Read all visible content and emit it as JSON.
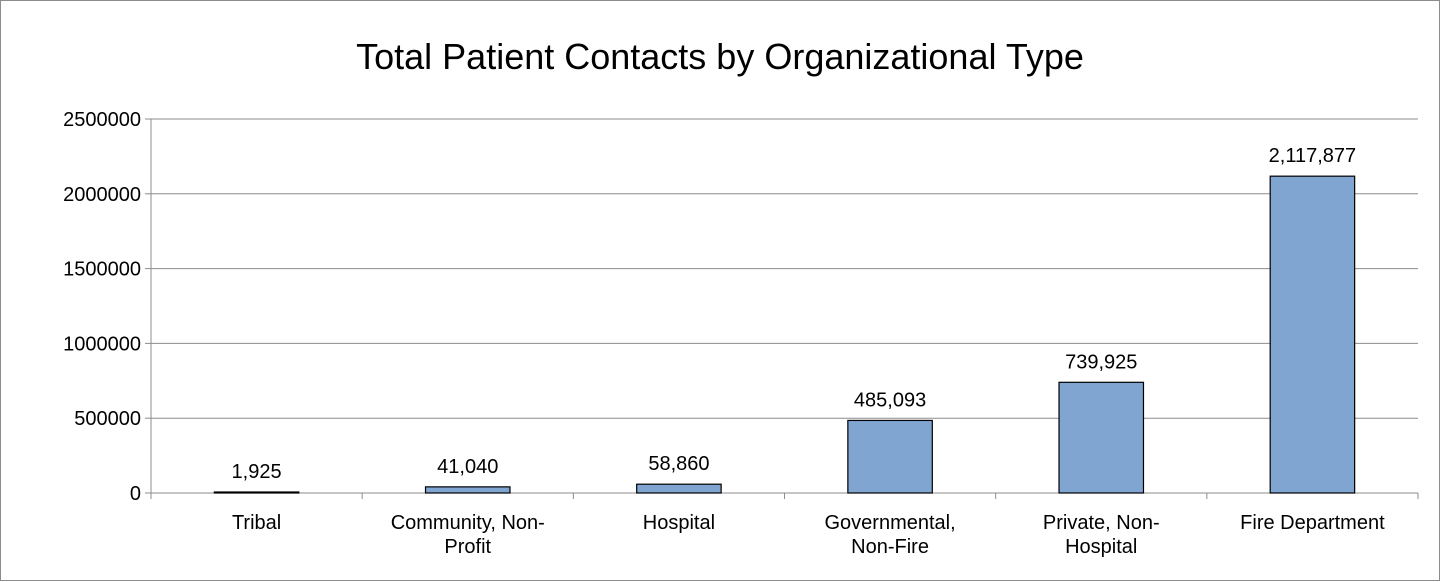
{
  "chart_data": {
    "type": "bar",
    "title": "Total Patient Contacts by Organizational Type",
    "categories": [
      [
        "Tribal"
      ],
      [
        "Community, Non-",
        "Profit"
      ],
      [
        "Hospital"
      ],
      [
        "Governmental,",
        "Non-Fire"
      ],
      [
        "Private, Non-",
        "Hospital"
      ],
      [
        "Fire Department"
      ]
    ],
    "values": [
      1925,
      41040,
      58860,
      485093,
      739925,
      2117877
    ],
    "data_labels": [
      "1,925",
      "41,040",
      "58,860",
      "485,093",
      "739,925",
      "2,117,877"
    ],
    "y_ticks": [
      "0",
      "500000",
      "1000000",
      "1500000",
      "2000000",
      "2500000"
    ],
    "ylim": [
      0,
      2500000
    ],
    "grid": true,
    "legend": "none",
    "colors": {
      "bar_fill": "#7fa5d0",
      "bar_stroke": "#000000",
      "grid": "#8c8c8c",
      "axis": "#8c8c8c"
    }
  }
}
